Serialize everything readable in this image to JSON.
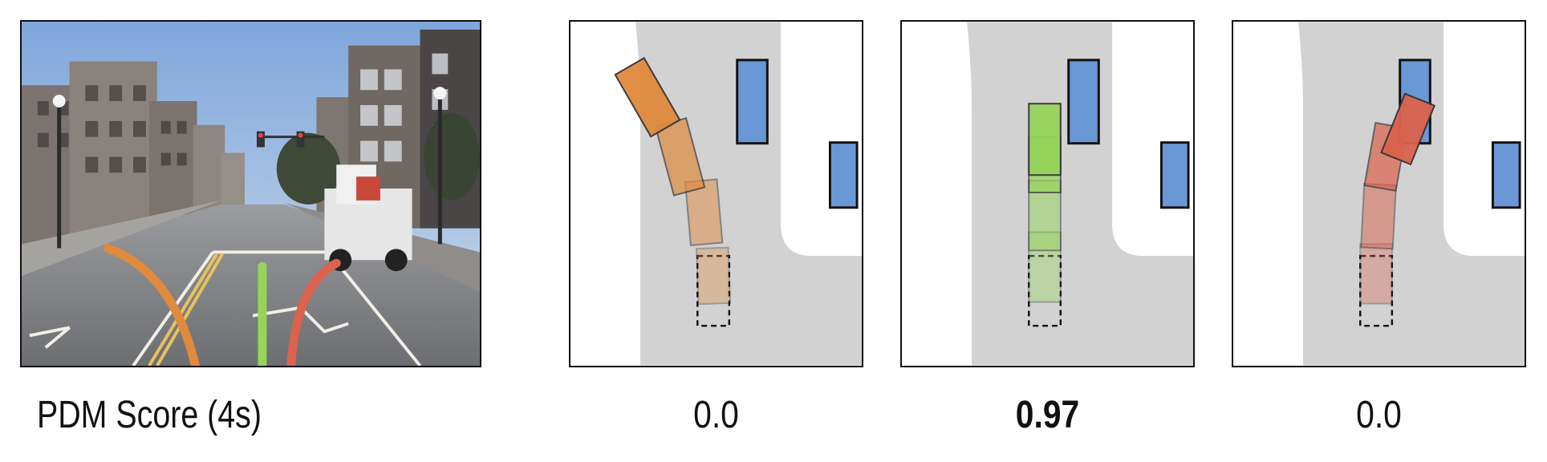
{
  "caption": {
    "label": "PDM Score (4s)"
  },
  "scores": [
    {
      "value": "0.0",
      "bold": false,
      "color": "#d9863f"
    },
    {
      "value": "0.97",
      "bold": true,
      "color": "#9ad46a"
    },
    {
      "value": "0.0",
      "bold": false,
      "color": "#d9604d"
    }
  ],
  "colors": {
    "orange_trajectory": "#e08a3e",
    "green_trajectory": "#96d45a",
    "red_trajectory": "#db624d",
    "vehicle_box": "#6a97d6",
    "drivable_area": "#d2d2d2"
  }
}
